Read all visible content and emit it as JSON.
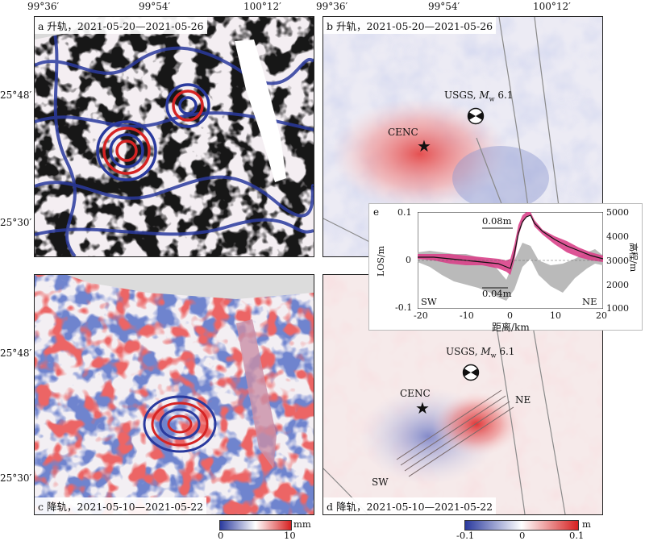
{
  "axes": {
    "top_lon_ticks": [
      "99°36′",
      "99°54′",
      "100°12′",
      "99°36′",
      "99°54′",
      "100°12′"
    ],
    "left_lat_ticks_top": [
      "25°48′",
      "25°30′"
    ],
    "left_lat_ticks_bottom": [
      "25°48′",
      "25°30′"
    ]
  },
  "panels": {
    "a": {
      "label": "a 升轨，2021-05-20—2021-05-26"
    },
    "b": {
      "label": "b 升轨，2021-05-20—2021-05-26",
      "usgs": "USGS, ",
      "mw_m": "M",
      "mw_sub": "w",
      "mw_val": "6.1",
      "cenc": "CENC"
    },
    "c": {
      "label": "c 降轨，2021-05-10—2021-05-22"
    },
    "d": {
      "label": "d 降轨，2021-05-10—2021-05-22",
      "usgs": "USGS, ",
      "mw_m": "M",
      "mw_sub": "w",
      "mw_val": "6.1",
      "cenc": "CENC",
      "ne": "NE",
      "sw": "SW"
    }
  },
  "colorbars": {
    "left": {
      "min": "0",
      "max": "10",
      "unit": "mm",
      "colors": [
        "#2a3a9e",
        "#ffffff",
        "#d62020"
      ]
    },
    "right": {
      "min": "-0.1",
      "mid": "0",
      "max": "0.1",
      "unit": "m",
      "colors": [
        "#2a3a9e",
        "#ffffff",
        "#d62020"
      ]
    }
  },
  "inset": {
    "label": "e",
    "ylabel_left": "LOS/m",
    "ylabel_right": "高程/m",
    "xlabel": "距离/km",
    "x_ticks": [
      "-20",
      "-10",
      "0",
      "10",
      "20"
    ],
    "y_left_ticks": [
      "0.1",
      "0",
      "-0.1"
    ],
    "y_right_ticks": [
      "5000",
      "4000",
      "3000",
      "2000",
      "1000"
    ],
    "sw": "SW",
    "ne": "NE",
    "ann_top": "0.08m",
    "ann_bottom": "0.04m",
    "colors": {
      "los": "#d9418a",
      "elev": "#b3b3b3",
      "line": "#111111"
    }
  }
}
